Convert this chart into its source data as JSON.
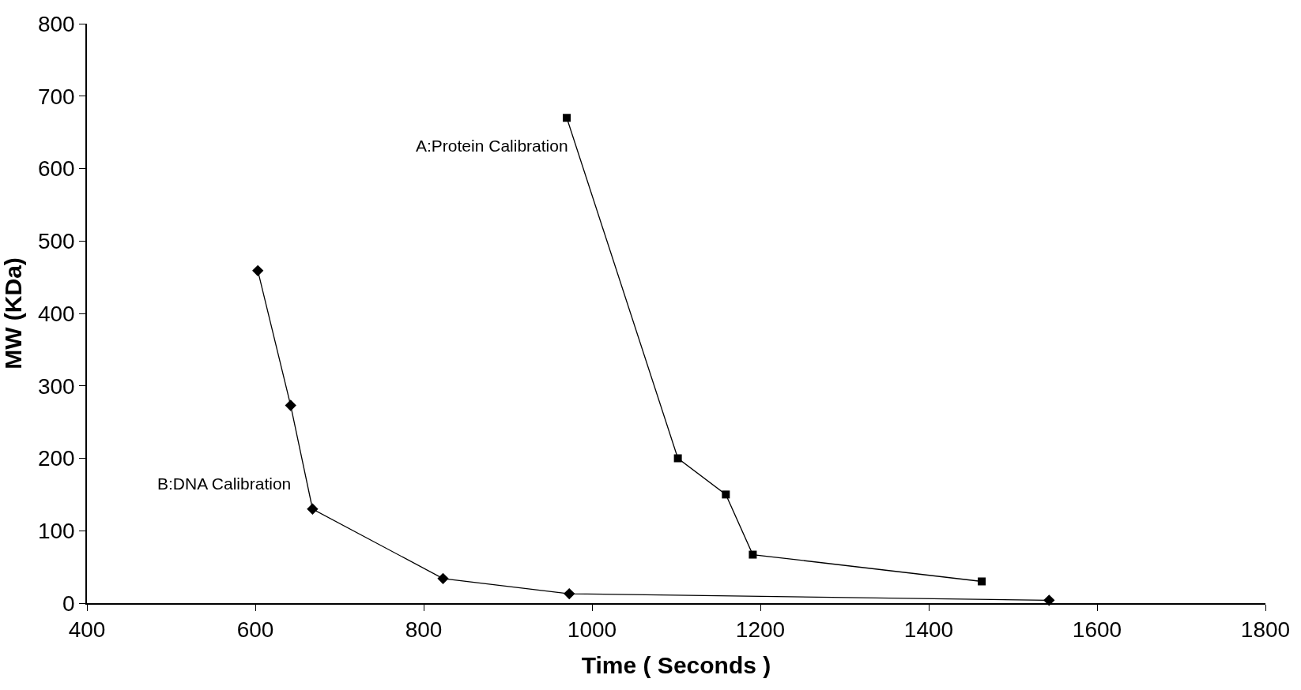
{
  "chart_data": {
    "type": "line",
    "xlabel": "Time ( Seconds )",
    "ylabel": "MW (KDa)",
    "xlim": [
      400,
      1800
    ],
    "xticks": [
      400,
      600,
      800,
      1000,
      1200,
      1400,
      1600,
      1800
    ],
    "ylim": [
      0,
      800
    ],
    "yticks": [
      0,
      100,
      200,
      300,
      400,
      500,
      600,
      700,
      800
    ],
    "legend": false,
    "line_style": "solid",
    "series": [
      {
        "name": "A:Protein Calibration",
        "color": "#000000",
        "marker": "square",
        "x": [
          970,
          1102,
          1159,
          1191,
          1463
        ],
        "values": [
          670,
          200,
          150,
          67,
          30
        ]
      },
      {
        "name": "B:DNA Calibration",
        "color": "#000000",
        "marker": "diamond",
        "x": [
          603,
          642,
          668,
          823,
          973,
          1543
        ],
        "values": [
          459,
          273,
          130,
          34,
          13,
          4
        ]
      }
    ]
  }
}
